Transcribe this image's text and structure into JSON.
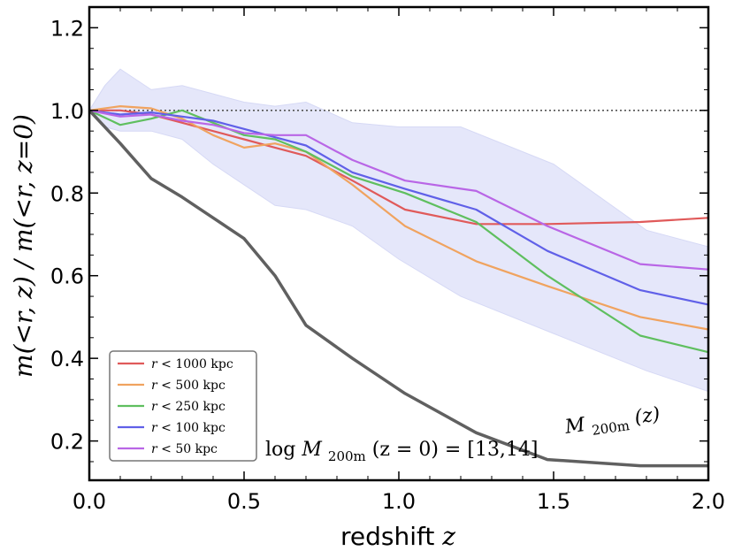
{
  "chart_data": {
    "type": "line",
    "xlabel": "redshift",
    "xlabel_var": "z",
    "ylabel": "m(<r, z) / m(<r, z=0)",
    "xlim": [
      0.0,
      2.0
    ],
    "ylim": [
      0.105,
      1.25
    ],
    "xticks": [
      "0.0",
      "0.5",
      "1.0",
      "1.5",
      "2.0"
    ],
    "xtick_values": [
      0.0,
      0.5,
      1.0,
      1.5,
      2.0
    ],
    "yticks": [
      "0.2",
      "0.4",
      "0.6",
      "0.8",
      "1.0",
      "1.2"
    ],
    "ytick_values": [
      0.2,
      0.4,
      0.6,
      0.8,
      1.0,
      1.2
    ],
    "reference_line": 1.0,
    "band": {
      "color": "#e5e7fa",
      "x": [
        0.0,
        0.05,
        0.1,
        0.2,
        0.3,
        0.4,
        0.5,
        0.6,
        0.7,
        0.85,
        1.0,
        1.2,
        1.5,
        1.8,
        2.0
      ],
      "upper": [
        1.0,
        1.06,
        1.1,
        1.05,
        1.06,
        1.04,
        1.02,
        1.01,
        1.02,
        0.97,
        0.96,
        0.96,
        0.87,
        0.71,
        0.67
      ],
      "lower": [
        1.0,
        0.96,
        0.95,
        0.95,
        0.93,
        0.87,
        0.82,
        0.77,
        0.76,
        0.72,
        0.64,
        0.55,
        0.46,
        0.37,
        0.32
      ]
    },
    "series": [
      {
        "name": "r < 1000 kpc",
        "color": "#e05a5a",
        "x": [
          0.0,
          0.1,
          0.2,
          0.3,
          0.4,
          0.5,
          0.6,
          0.7,
          0.85,
          1.02,
          1.25,
          1.48,
          1.78,
          2.0
        ],
        "y": [
          1.0,
          1.0,
          0.99,
          0.97,
          0.95,
          0.93,
          0.91,
          0.89,
          0.83,
          0.76,
          0.725,
          0.725,
          0.73,
          0.74
        ]
      },
      {
        "name": "r < 500 kpc",
        "color": "#f0a35f",
        "x": [
          0.0,
          0.1,
          0.2,
          0.3,
          0.4,
          0.5,
          0.6,
          0.7,
          0.85,
          1.02,
          1.25,
          1.48,
          1.78,
          2.0
        ],
        "y": [
          1.0,
          1.01,
          1.005,
          0.98,
          0.94,
          0.91,
          0.92,
          0.9,
          0.82,
          0.72,
          0.635,
          0.575,
          0.5,
          0.47
        ]
      },
      {
        "name": "r < 250 kpc",
        "color": "#5fbf5f",
        "x": [
          0.0,
          0.1,
          0.2,
          0.3,
          0.4,
          0.5,
          0.6,
          0.7,
          0.85,
          1.02,
          1.25,
          1.48,
          1.78,
          2.0
        ],
        "y": [
          1.0,
          0.965,
          0.98,
          1.0,
          0.97,
          0.94,
          0.93,
          0.9,
          0.84,
          0.8,
          0.73,
          0.6,
          0.455,
          0.415
        ]
      },
      {
        "name": "r < 100 kpc",
        "color": "#6060e8",
        "x": [
          0.0,
          0.1,
          0.2,
          0.3,
          0.4,
          0.5,
          0.6,
          0.7,
          0.85,
          1.02,
          1.25,
          1.48,
          1.78,
          2.0
        ],
        "y": [
          1.0,
          0.99,
          0.995,
          0.985,
          0.975,
          0.955,
          0.935,
          0.915,
          0.85,
          0.81,
          0.76,
          0.66,
          0.565,
          0.53
        ]
      },
      {
        "name": "r < 50 kpc",
        "color": "#b966e6",
        "x": [
          0.0,
          0.1,
          0.2,
          0.3,
          0.4,
          0.5,
          0.6,
          0.7,
          0.85,
          1.02,
          1.25,
          1.48,
          1.78,
          2.0
        ],
        "y": [
          1.0,
          0.985,
          0.99,
          0.975,
          0.965,
          0.945,
          0.94,
          0.94,
          0.88,
          0.83,
          0.805,
          0.72,
          0.628,
          0.615
        ]
      },
      {
        "name": "M200m(z)",
        "color": "#606060",
        "x": [
          0.0,
          0.1,
          0.2,
          0.3,
          0.4,
          0.5,
          0.6,
          0.7,
          0.85,
          1.02,
          1.25,
          1.48,
          1.78,
          2.0
        ],
        "y": [
          1.0,
          0.92,
          0.835,
          0.79,
          0.74,
          0.69,
          0.6,
          0.48,
          0.4,
          0.315,
          0.22,
          0.155,
          0.14,
          0.14
        ]
      }
    ],
    "legend": {
      "placement": "lower-left",
      "entries": [
        {
          "prefix": "r",
          "text": "< 1000 kpc"
        },
        {
          "prefix": "r",
          "text": "< 500 kpc"
        },
        {
          "prefix": "r",
          "text": "< 250 kpc"
        },
        {
          "prefix": "r",
          "text": "< 100 kpc"
        },
        {
          "prefix": "r",
          "text": "< 50 kpc"
        }
      ]
    },
    "annotations": {
      "mass_label_main": "M",
      "mass_label_sub": "200m",
      "mass_label_tail": "(z)",
      "range_label_log": "log",
      "range_label_main": "M",
      "range_label_sub": "200m",
      "range_label_tail": "(z = 0) = [13,14]"
    }
  }
}
